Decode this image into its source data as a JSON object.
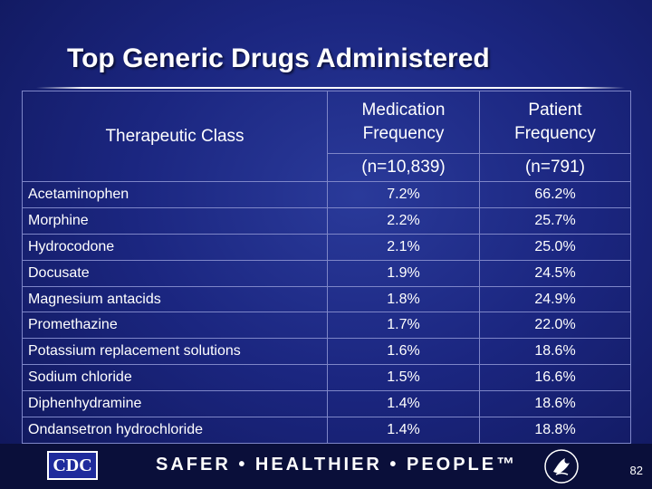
{
  "slide": {
    "title": "Top Generic Drugs Administered"
  },
  "table": {
    "headers": {
      "class": "Therapeutic Class",
      "med_freq_line1": "Medication",
      "med_freq_line2": "Frequency",
      "pat_freq_line1": "Patient",
      "pat_freq_line2": "Frequency",
      "med_n": "(n=10,839)",
      "pat_n": "(n=791)"
    },
    "rows": [
      {
        "name": "Acetaminophen",
        "med": "7.2%",
        "pat": "66.2%"
      },
      {
        "name": "Morphine",
        "med": "2.2%",
        "pat": "25.7%"
      },
      {
        "name": "Hydrocodone",
        "med": "2.1%",
        "pat": "25.0%"
      },
      {
        "name": "Docusate",
        "med": "1.9%",
        "pat": "24.5%"
      },
      {
        "name": "Magnesium antacids",
        "med": "1.8%",
        "pat": "24.9%"
      },
      {
        "name": "Promethazine",
        "med": "1.7%",
        "pat": "22.0%"
      },
      {
        "name": "Potassium replacement solutions",
        "med": "1.6%",
        "pat": "18.6%"
      },
      {
        "name": "Sodium chloride",
        "med": "1.5%",
        "pat": "16.6%"
      },
      {
        "name": "Diphenhydramine",
        "med": "1.4%",
        "pat": "18.6%"
      },
      {
        "name": "Ondansetron hydrochloride",
        "med": "1.4%",
        "pat": "18.8%"
      }
    ]
  },
  "footer": {
    "logo_text": "CDC",
    "tagline": "SAFER • HEALTHIER • PEOPLE™",
    "seal_icon": "hhs-eagle-icon",
    "page_number": "82"
  },
  "colors": {
    "background": "#1b2680",
    "grid": "#7e86c8",
    "footer": "#0a0f3a"
  }
}
